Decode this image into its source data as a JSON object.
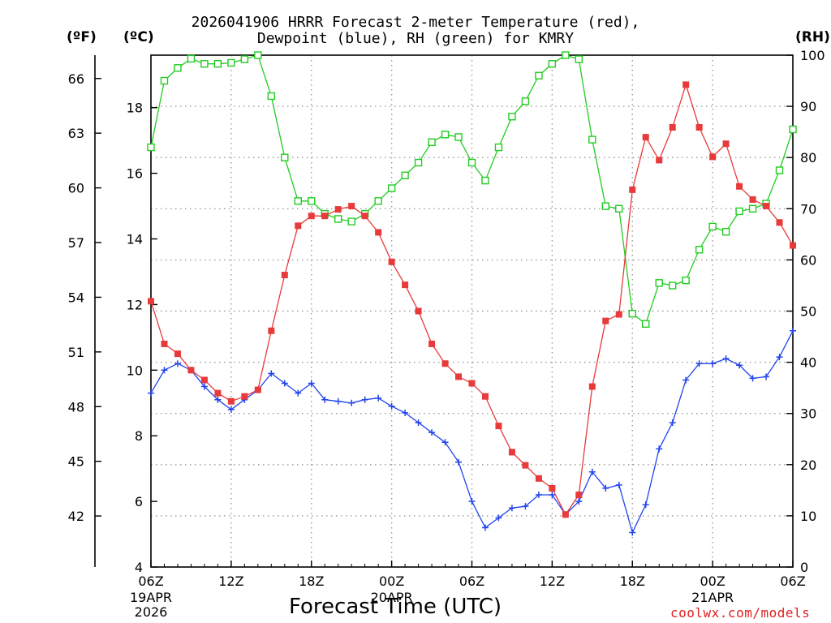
{
  "title": {
    "line1": "2026041906 HRRR Forecast 2-meter Temperature (red),",
    "line2": "Dewpoint (blue), RH (green) for KMRY"
  },
  "units": {
    "fahrenheit": "(ºF)",
    "celsius": "(ºC)",
    "rh": "(RH)"
  },
  "xaxis_title": "Forecast Time (UTC)",
  "credit": "coolwx.com/models",
  "colors": {
    "temperature": "#e83a3a",
    "dewpoint": "#2244ee",
    "rh": "#22cc22",
    "grid": "#9a9a9a"
  },
  "chart_data": {
    "type": "line",
    "x_unit": "hours since 2026-04-19 06Z",
    "x": [
      0,
      1,
      2,
      3,
      4,
      5,
      6,
      7,
      8,
      9,
      10,
      11,
      12,
      13,
      14,
      15,
      16,
      17,
      18,
      19,
      20,
      21,
      22,
      23,
      24,
      25,
      26,
      27,
      28,
      29,
      30,
      31,
      32,
      33,
      34,
      35,
      36,
      37,
      38,
      39,
      40,
      41,
      42,
      43,
      44,
      45,
      46,
      47,
      48
    ],
    "xlim": [
      0,
      48
    ],
    "x_ticks": [
      {
        "x": 0,
        "label": "06Z",
        "sub": [
          "19APR",
          "2026"
        ]
      },
      {
        "x": 6,
        "label": "12Z",
        "sub": []
      },
      {
        "x": 12,
        "label": "18Z",
        "sub": []
      },
      {
        "x": 18,
        "label": "00Z",
        "sub": [
          "20APR"
        ]
      },
      {
        "x": 24,
        "label": "06Z",
        "sub": []
      },
      {
        "x": 30,
        "label": "12Z",
        "sub": []
      },
      {
        "x": 36,
        "label": "18Z",
        "sub": []
      },
      {
        "x": 42,
        "label": "00Z",
        "sub": [
          "21APR"
        ]
      },
      {
        "x": 48,
        "label": "06Z",
        "sub": []
      }
    ],
    "ylim_c": [
      4,
      19.6
    ],
    "y_ticks_c": [
      4,
      6,
      8,
      10,
      12,
      14,
      16,
      18
    ],
    "y_ticks_f": [
      42,
      45,
      48,
      51,
      54,
      57,
      60,
      63,
      66
    ],
    "ylim_rh": [
      0,
      100
    ],
    "y_ticks_rh": [
      0,
      10,
      20,
      30,
      40,
      50,
      60,
      70,
      80,
      90,
      100
    ],
    "grid": true,
    "series": [
      {
        "name": "Temperature (red)",
        "axis": "celsius",
        "marker": "filled-square",
        "values": [
          12.1,
          10.8,
          10.5,
          10.0,
          9.7,
          9.3,
          9.05,
          9.2,
          9.4,
          11.2,
          12.9,
          14.4,
          14.7,
          14.7,
          14.9,
          15.0,
          14.7,
          14.2,
          13.3,
          12.6,
          11.8,
          10.8,
          10.2,
          9.8,
          9.6,
          9.2,
          8.3,
          7.5,
          7.1,
          6.7,
          6.4,
          5.6,
          6.2,
          9.5,
          11.5,
          11.7,
          15.5,
          17.1,
          16.4,
          17.4,
          18.7,
          17.4,
          16.5,
          16.9,
          15.6,
          15.2,
          15.0,
          14.5,
          13.8
        ]
      },
      {
        "name": "Dewpoint (blue)",
        "axis": "celsius",
        "marker": "plus",
        "values": [
          9.3,
          10.0,
          10.2,
          10.0,
          9.5,
          9.1,
          8.8,
          9.1,
          9.4,
          9.9,
          9.6,
          9.3,
          9.6,
          9.1,
          9.05,
          9.0,
          9.1,
          9.15,
          8.9,
          8.7,
          8.4,
          8.1,
          7.8,
          7.2,
          6.0,
          5.2,
          5.5,
          5.8,
          5.85,
          6.2,
          6.2,
          5.6,
          6.0,
          6.9,
          6.4,
          6.5,
          5.05,
          5.9,
          7.6,
          8.4,
          9.7,
          10.2,
          10.2,
          10.35,
          10.15,
          9.75,
          9.8,
          10.4,
          11.2
        ]
      },
      {
        "name": "RH (green)",
        "axis": "rh",
        "marker": "open-square",
        "values": [
          82,
          95,
          97.5,
          99.3,
          98.3,
          98.3,
          98.5,
          99.2,
          100,
          92,
          80,
          71.5,
          71.5,
          69,
          68,
          67.5,
          69,
          71.5,
          74,
          76.5,
          79,
          83,
          84.5,
          84,
          79,
          75.5,
          82,
          88,
          91,
          96,
          98.3,
          100,
          99.2,
          83.5,
          70.5,
          70,
          49.5,
          47.5,
          55.5,
          55,
          56,
          62,
          66.5,
          65.5,
          69.5,
          70,
          71,
          77.5,
          85.5
        ]
      }
    ]
  }
}
